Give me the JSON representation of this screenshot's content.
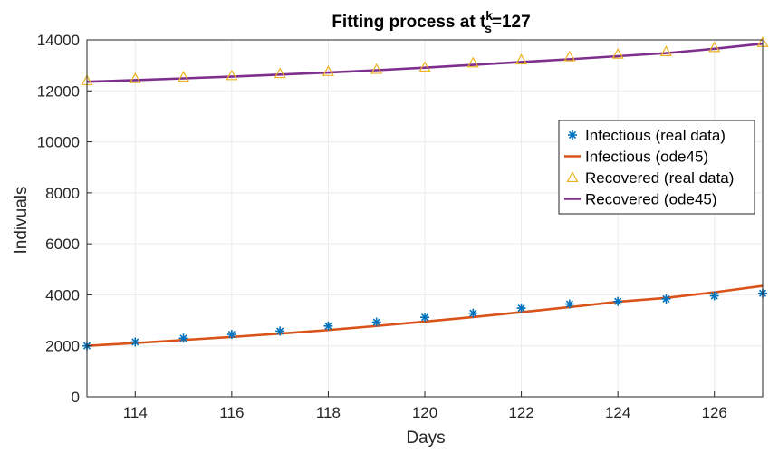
{
  "chart_data": {
    "type": "line",
    "title": {
      "main": "Fitting process at t",
      "sup": "k",
      "sub": "s",
      "suffix": "=127"
    },
    "xlabel": "Days",
    "ylabel": "Indivuals",
    "xlim": [
      113,
      127
    ],
    "ylim": [
      0,
      14000
    ],
    "xticks": [
      114,
      116,
      118,
      120,
      122,
      124,
      126
    ],
    "yticks": [
      0,
      2000,
      4000,
      6000,
      8000,
      10000,
      12000,
      14000
    ],
    "grid": true,
    "legend_position": "right",
    "x": [
      113,
      114,
      115,
      116,
      117,
      118,
      119,
      120,
      121,
      122,
      123,
      124,
      125,
      126,
      127
    ],
    "series": [
      {
        "name": "Infectious (real data)",
        "kind": "marker",
        "marker": "asterisk",
        "color": "#0072bd",
        "values": [
          2000,
          2150,
          2300,
          2450,
          2580,
          2780,
          2930,
          3120,
          3280,
          3480,
          3640,
          3740,
          3840,
          3960,
          4060
        ]
      },
      {
        "name": "Infectious (ode45)",
        "kind": "line",
        "color": "#d95319",
        "values": [
          2000,
          2110,
          2230,
          2350,
          2480,
          2620,
          2780,
          2950,
          3130,
          3320,
          3520,
          3730,
          3880,
          4100,
          4350
        ]
      },
      {
        "name": "Recovered (real data)",
        "kind": "marker",
        "marker": "triangle",
        "color": "#edb120",
        "values": [
          12400,
          12480,
          12540,
          12600,
          12680,
          12760,
          12840,
          12930,
          13100,
          13220,
          13340,
          13440,
          13540,
          13700,
          13900
        ]
      },
      {
        "name": "Recovered (ode45)",
        "kind": "line",
        "color": "#7e2f8e",
        "values": [
          12360,
          12420,
          12490,
          12560,
          12640,
          12720,
          12810,
          12910,
          13020,
          13130,
          13240,
          13360,
          13480,
          13650,
          13850
        ]
      }
    ]
  }
}
